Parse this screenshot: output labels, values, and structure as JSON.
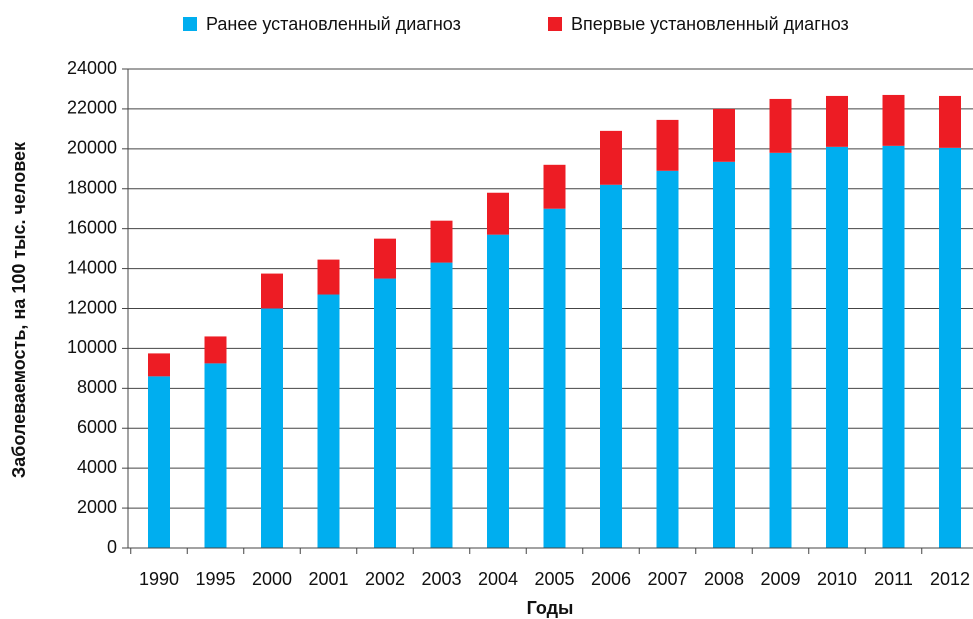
{
  "chart_data": {
    "type": "stacked_bar",
    "x_label": "Годы",
    "y_label": "Заболеваемость, на 100 тыс. человек",
    "categories": [
      "1990",
      "1995",
      "2000",
      "2001",
      "2002",
      "2003",
      "2004",
      "2005",
      "2006",
      "2007",
      "2008",
      "2009",
      "2010",
      "2011",
      "2012"
    ],
    "series": [
      {
        "name": "Ранее установленный диагноз",
        "color": "#00aeef",
        "values": [
          8600,
          9250,
          12000,
          12700,
          13500,
          14300,
          15700,
          17000,
          18200,
          18900,
          19350,
          19800,
          20100,
          20150,
          20050
        ]
      },
      {
        "name": "Впервые установленный диагноз",
        "color": "#ed1c24",
        "values": [
          1150,
          1350,
          1750,
          1750,
          2000,
          2100,
          2100,
          2200,
          2700,
          2550,
          2650,
          2700,
          2550,
          2550,
          2600
        ]
      }
    ],
    "ylim": [
      0,
      24000
    ],
    "yticks": [
      0,
      2000,
      4000,
      6000,
      8000,
      10000,
      12000,
      14000,
      16000,
      18000,
      20000,
      22000,
      24000
    ],
    "grid": true,
    "legend": "top"
  }
}
